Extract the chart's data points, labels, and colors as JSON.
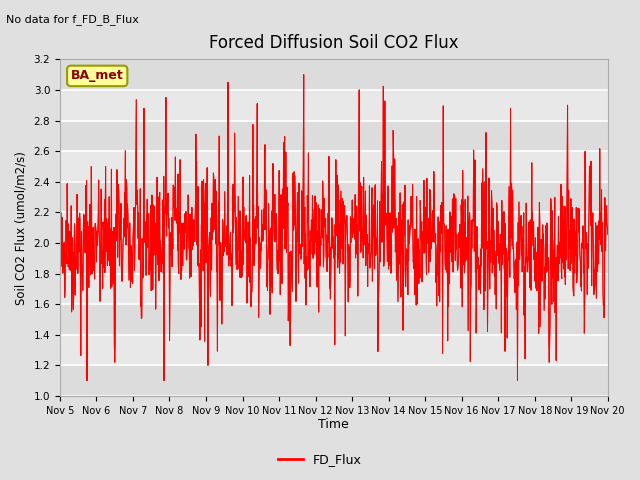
{
  "title": "Forced Diffusion Soil CO2 Flux",
  "top_left_text": "No data for f_FD_B_Flux",
  "xlabel": "Time",
  "ylabel": "Soil CO2 Flux (umol/m2/s)",
  "ylim": [
    1.0,
    3.2
  ],
  "yticks": [
    1.0,
    1.2,
    1.4,
    1.6,
    1.8,
    2.0,
    2.2,
    2.4,
    2.6,
    2.8,
    3.0,
    3.2
  ],
  "xlim_start": 5,
  "xlim_end": 20,
  "xtick_labels": [
    "Nov 5",
    "Nov 6",
    "Nov 7",
    "Nov 8",
    "Nov 9",
    "Nov 10",
    "Nov 11",
    "Nov 12",
    "Nov 13",
    "Nov 14",
    "Nov 15",
    "Nov 16",
    "Nov 17",
    "Nov 18",
    "Nov 19",
    "Nov 20"
  ],
  "xtick_positions": [
    5,
    6,
    7,
    8,
    9,
    10,
    11,
    12,
    13,
    14,
    15,
    16,
    17,
    18,
    19,
    20
  ],
  "line_color": "#FF0000",
  "line_label": "FD_Flux",
  "legend_label": "BA_met",
  "legend_facecolor": "#FFFF99",
  "legend_edgecolor": "#999900",
  "bg_color": "#E0E0E0",
  "plot_bg_color": "#E8E8E8",
  "grid_color": "#C8C8C8",
  "seed": 42,
  "n_points": 1500
}
